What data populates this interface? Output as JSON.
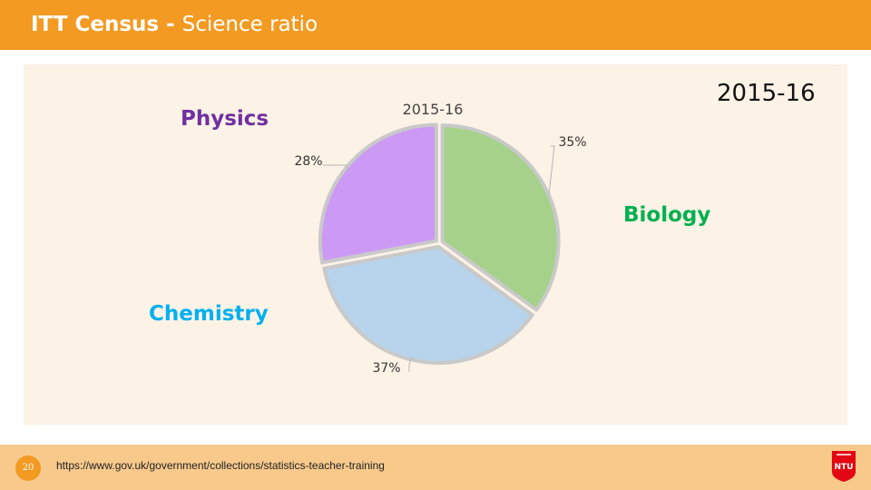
{
  "header": {
    "title_bold": "ITT Census",
    "separator": " - ",
    "title_rest": "Science ratio"
  },
  "corner_year": "2015-16",
  "labels": {
    "physics": "Physics",
    "biology": "Biology",
    "chemistry": "Chemistry"
  },
  "colors": {
    "header_bg": "#f39a22",
    "panel_bg": "#fdf2e6",
    "physics_label": "#7030a0",
    "biology_label": "#00b050",
    "chemistry_label": "#00b0f0"
  },
  "chart_data": {
    "type": "pie",
    "title": "2015-16",
    "categories": [
      "Biology",
      "Chemistry",
      "Physics"
    ],
    "values": [
      35,
      37,
      28
    ],
    "data_labels": [
      "35%",
      "37%",
      "28%"
    ],
    "colors": [
      "#a6d18b",
      "#b8d4ec",
      "#cc99f5"
    ],
    "edge_colors": [
      "#c9c9c9",
      "#c9c9c9",
      "#c9c9c9"
    ]
  },
  "footer": {
    "page_number": "20",
    "url": "https://www.gov.uk/government/collections/statistics-teacher-training",
    "logo_text": "NTU"
  }
}
